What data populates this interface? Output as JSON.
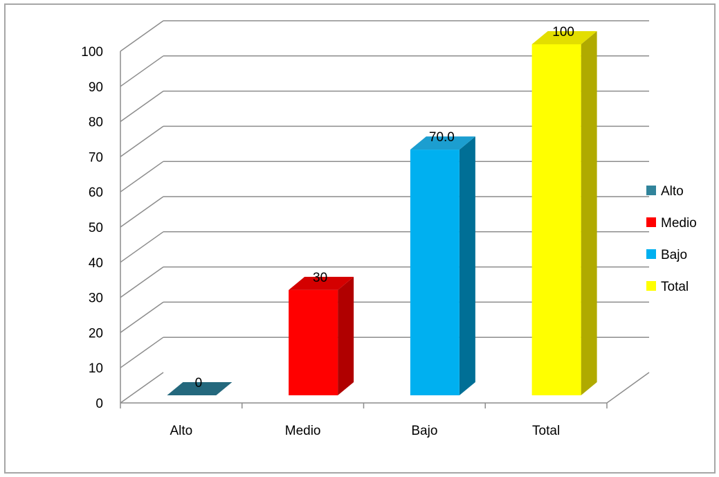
{
  "chart_data": {
    "type": "bar",
    "title": "",
    "xlabel": "",
    "ylabel": "",
    "categories": [
      "Alto",
      "Medio",
      "Bajo",
      "Total"
    ],
    "values": [
      0,
      30,
      70,
      100
    ],
    "data_labels": [
      "0",
      "30",
      "70.0",
      "100"
    ],
    "yticks": [
      "0",
      "10",
      "20",
      "30",
      "40",
      "50",
      "60",
      "70",
      "80",
      "90",
      "100"
    ],
    "ylim": [
      0,
      100
    ],
    "grid": true,
    "legend_position": "right",
    "colors": {
      "front": [
        "#24687d",
        "#ff0000",
        "#00b0f0",
        "#ffff00"
      ],
      "side": [
        "#1a4e5e",
        "#b00000",
        "#006f96",
        "#b0aa00"
      ],
      "top": [
        "#2e7f97",
        "#d40000",
        "#1c9ed0",
        "#e3de00"
      ]
    },
    "legend": [
      {
        "label": "Alto",
        "color": "#31849b"
      },
      {
        "label": "Medio",
        "color": "#ff0000"
      },
      {
        "label": "Bajo",
        "color": "#00b0f0"
      },
      {
        "label": "Total",
        "color": "#ffff00"
      }
    ]
  }
}
